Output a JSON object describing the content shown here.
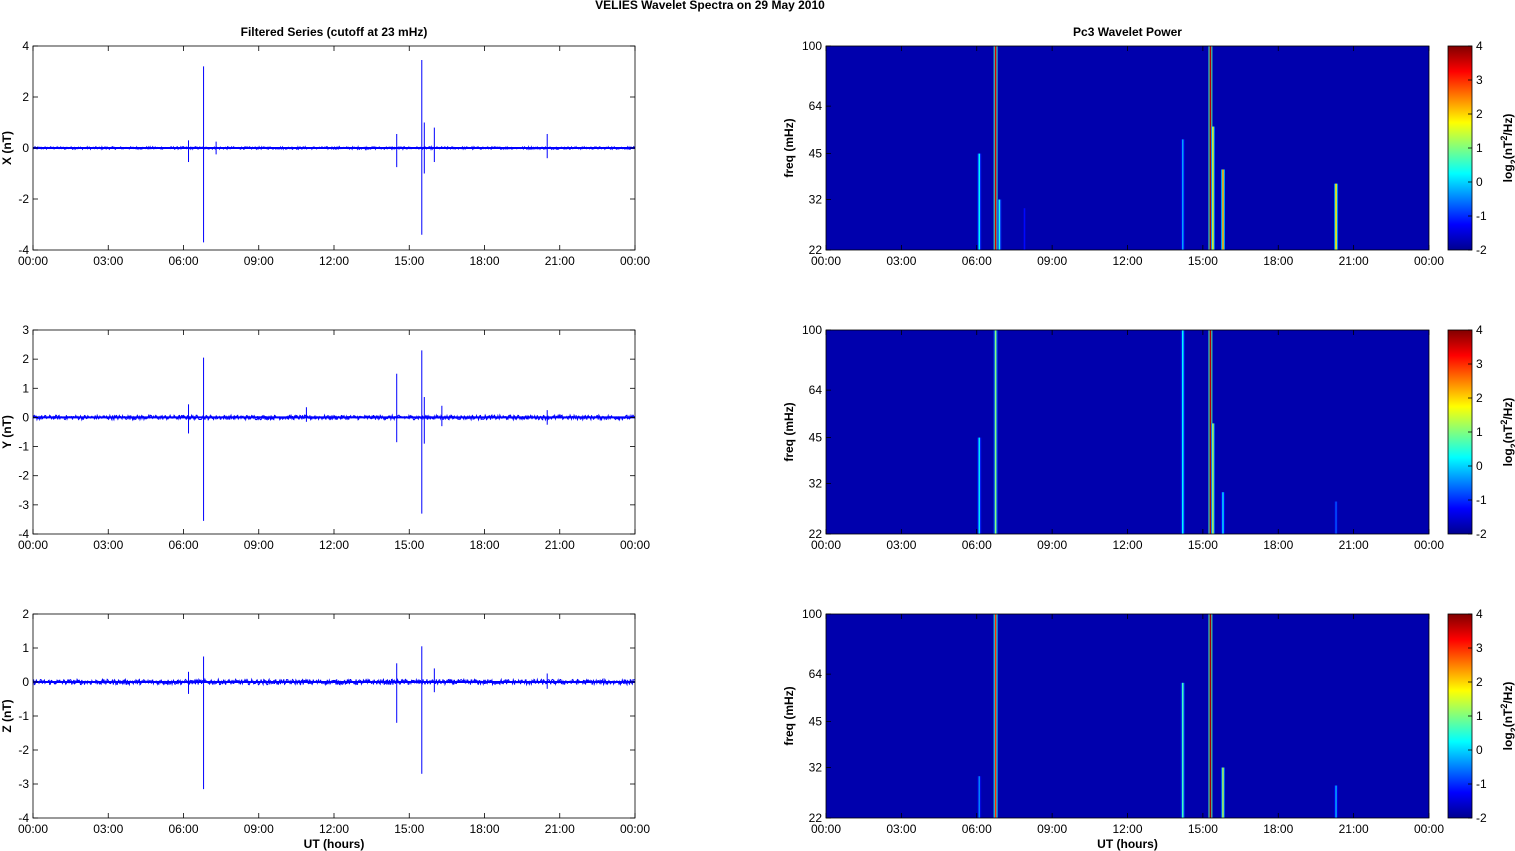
{
  "figure_title": "VELIES Wavelet Spectra on 29 May       2010",
  "colors": {
    "trace": "#0000ff",
    "background": "#00008c",
    "axis": "#000000"
  },
  "chart_data": [
    {
      "type": "line",
      "title": "Filtered Series (cutoff at 23 mHz)",
      "ylabel": "X (nT)",
      "xlabel": "",
      "xlim": [
        0,
        24
      ],
      "ylim": [
        -4,
        4
      ],
      "xticks": [
        "00:00",
        "03:00",
        "06:00",
        "09:00",
        "12:00",
        "15:00",
        "18:00",
        "21:00",
        "00:00"
      ],
      "yticks": [
        "-4",
        "-2",
        "0",
        "2",
        "4"
      ],
      "noise_amplitude": 0.05,
      "spikes": [
        {
          "t": 6.2,
          "max": 0.3,
          "min": -0.55
        },
        {
          "t": 6.8,
          "max": 3.2,
          "min": -3.7
        },
        {
          "t": 7.3,
          "max": 0.25,
          "min": -0.25
        },
        {
          "t": 14.5,
          "max": 0.55,
          "min": -0.75
        },
        {
          "t": 15.5,
          "max": 3.45,
          "min": -3.4
        },
        {
          "t": 15.6,
          "max": 1.0,
          "min": -1.0
        },
        {
          "t": 16.0,
          "max": 0.8,
          "min": -0.55
        },
        {
          "t": 20.5,
          "max": 0.55,
          "min": -0.4
        }
      ]
    },
    {
      "type": "line",
      "title": "",
      "ylabel": "Y (nT)",
      "xlabel": "",
      "xlim": [
        0,
        24
      ],
      "ylim": [
        -4,
        3
      ],
      "xticks": [
        "00:00",
        "03:00",
        "06:00",
        "09:00",
        "12:00",
        "15:00",
        "18:00",
        "21:00",
        "00:00"
      ],
      "yticks": [
        "-4",
        "-3",
        "-2",
        "-1",
        "0",
        "1",
        "2",
        "3"
      ],
      "noise_amplitude": 0.08,
      "spikes": [
        {
          "t": 6.2,
          "max": 0.45,
          "min": -0.55
        },
        {
          "t": 6.8,
          "max": 2.05,
          "min": -3.55
        },
        {
          "t": 10.9,
          "max": 0.35,
          "min": -0.15
        },
        {
          "t": 14.5,
          "max": 1.5,
          "min": -0.85
        },
        {
          "t": 15.5,
          "max": 2.3,
          "min": -3.3
        },
        {
          "t": 15.6,
          "max": 0.7,
          "min": -0.9
        },
        {
          "t": 16.3,
          "max": 0.4,
          "min": -0.3
        },
        {
          "t": 20.5,
          "max": 0.25,
          "min": -0.25
        }
      ]
    },
    {
      "type": "line",
      "title": "",
      "ylabel": "Z (nT)",
      "xlabel": "UT (hours)",
      "xlim": [
        0,
        24
      ],
      "ylim": [
        -4,
        2
      ],
      "xticks": [
        "00:00",
        "03:00",
        "06:00",
        "09:00",
        "12:00",
        "15:00",
        "18:00",
        "21:00",
        "00:00"
      ],
      "yticks": [
        "-4",
        "-3",
        "-2",
        "-1",
        "0",
        "1",
        "2"
      ],
      "noise_amplitude": 0.08,
      "spikes": [
        {
          "t": 6.2,
          "max": 0.3,
          "min": -0.35
        },
        {
          "t": 6.8,
          "max": 0.75,
          "min": -3.15
        },
        {
          "t": 14.5,
          "max": 0.55,
          "min": -1.2
        },
        {
          "t": 15.5,
          "max": 1.05,
          "min": -2.7
        },
        {
          "t": 16.0,
          "max": 0.4,
          "min": -0.3
        },
        {
          "t": 20.5,
          "max": 0.25,
          "min": -0.2
        }
      ]
    },
    {
      "type": "heatmap",
      "title": "Pc3 Wavelet Power",
      "ylabel": "freq (mHz)",
      "xlabel": "",
      "xlim": [
        0,
        24
      ],
      "ylim": [
        22,
        100
      ],
      "yscale": "log",
      "xticks": [
        "00:00",
        "03:00",
        "06:00",
        "09:00",
        "12:00",
        "15:00",
        "18:00",
        "21:00",
        "00:00"
      ],
      "yticks": [
        22,
        32,
        45,
        64,
        100
      ],
      "colorbar": {
        "label": "log2(nT2/Hz)",
        "min": -2,
        "max": 4,
        "ticks": [
          "-2",
          "-1",
          "0",
          "1",
          "2",
          "3",
          "4"
        ]
      },
      "background_value": -1.8,
      "streaks": [
        {
          "t": 6.1,
          "fmax": 45,
          "value": 0.2
        },
        {
          "t": 6.75,
          "fmax": 100,
          "value": 3.5
        },
        {
          "t": 6.9,
          "fmax": 32,
          "value": 0.4
        },
        {
          "t": 7.9,
          "fmax": 30,
          "value": -1.2
        },
        {
          "t": 14.2,
          "fmax": 50,
          "value": -0.3
        },
        {
          "t": 15.3,
          "fmax": 100,
          "value": 3.7
        },
        {
          "t": 15.4,
          "fmax": 55,
          "value": 1.5
        },
        {
          "t": 15.8,
          "fmax": 40,
          "value": 2.2
        },
        {
          "t": 20.3,
          "fmax": 36,
          "value": 1.8
        }
      ]
    },
    {
      "type": "heatmap",
      "title": "",
      "ylabel": "freq (mHz)",
      "xlabel": "",
      "xlim": [
        0,
        24
      ],
      "ylim": [
        22,
        100
      ],
      "yscale": "log",
      "xticks": [
        "00:00",
        "03:00",
        "06:00",
        "09:00",
        "12:00",
        "15:00",
        "18:00",
        "21:00",
        "00:00"
      ],
      "yticks": [
        22,
        32,
        45,
        64,
        100
      ],
      "colorbar": {
        "label": "log2(nT2/Hz)",
        "min": -2,
        "max": 4,
        "ticks": [
          "-2",
          "-1",
          "0",
          "1",
          "2",
          "3",
          "4"
        ]
      },
      "background_value": -1.8,
      "streaks": [
        {
          "t": 6.1,
          "fmax": 45,
          "value": 0.1
        },
        {
          "t": 6.75,
          "fmax": 100,
          "value": 1.0
        },
        {
          "t": 14.2,
          "fmax": 100,
          "value": 0.2
        },
        {
          "t": 15.3,
          "fmax": 100,
          "value": 3.7
        },
        {
          "t": 15.4,
          "fmax": 50,
          "value": 1.2
        },
        {
          "t": 15.8,
          "fmax": 30,
          "value": 0.0
        },
        {
          "t": 20.3,
          "fmax": 28,
          "value": -0.8
        }
      ]
    },
    {
      "type": "heatmap",
      "title": "",
      "ylabel": "freq (mHz)",
      "xlabel": "UT (hours)",
      "xlim": [
        0,
        24
      ],
      "ylim": [
        22,
        100
      ],
      "yscale": "log",
      "xticks": [
        "00:00",
        "03:00",
        "06:00",
        "09:00",
        "12:00",
        "15:00",
        "18:00",
        "21:00",
        "00:00"
      ],
      "yticks": [
        22,
        32,
        45,
        64,
        100
      ],
      "colorbar": {
        "label": "log2(nT2/Hz)",
        "min": -2,
        "max": 4,
        "ticks": [
          "-2",
          "-1",
          "0",
          "1",
          "2",
          "3",
          "4"
        ]
      },
      "background_value": -1.8,
      "streaks": [
        {
          "t": 6.1,
          "fmax": 30,
          "value": -0.5
        },
        {
          "t": 6.75,
          "fmax": 100,
          "value": 3.0
        },
        {
          "t": 14.2,
          "fmax": 60,
          "value": 0.6
        },
        {
          "t": 15.3,
          "fmax": 100,
          "value": 3.8
        },
        {
          "t": 15.8,
          "fmax": 32,
          "value": 1.2
        },
        {
          "t": 20.3,
          "fmax": 28,
          "value": -0.3
        }
      ]
    }
  ]
}
